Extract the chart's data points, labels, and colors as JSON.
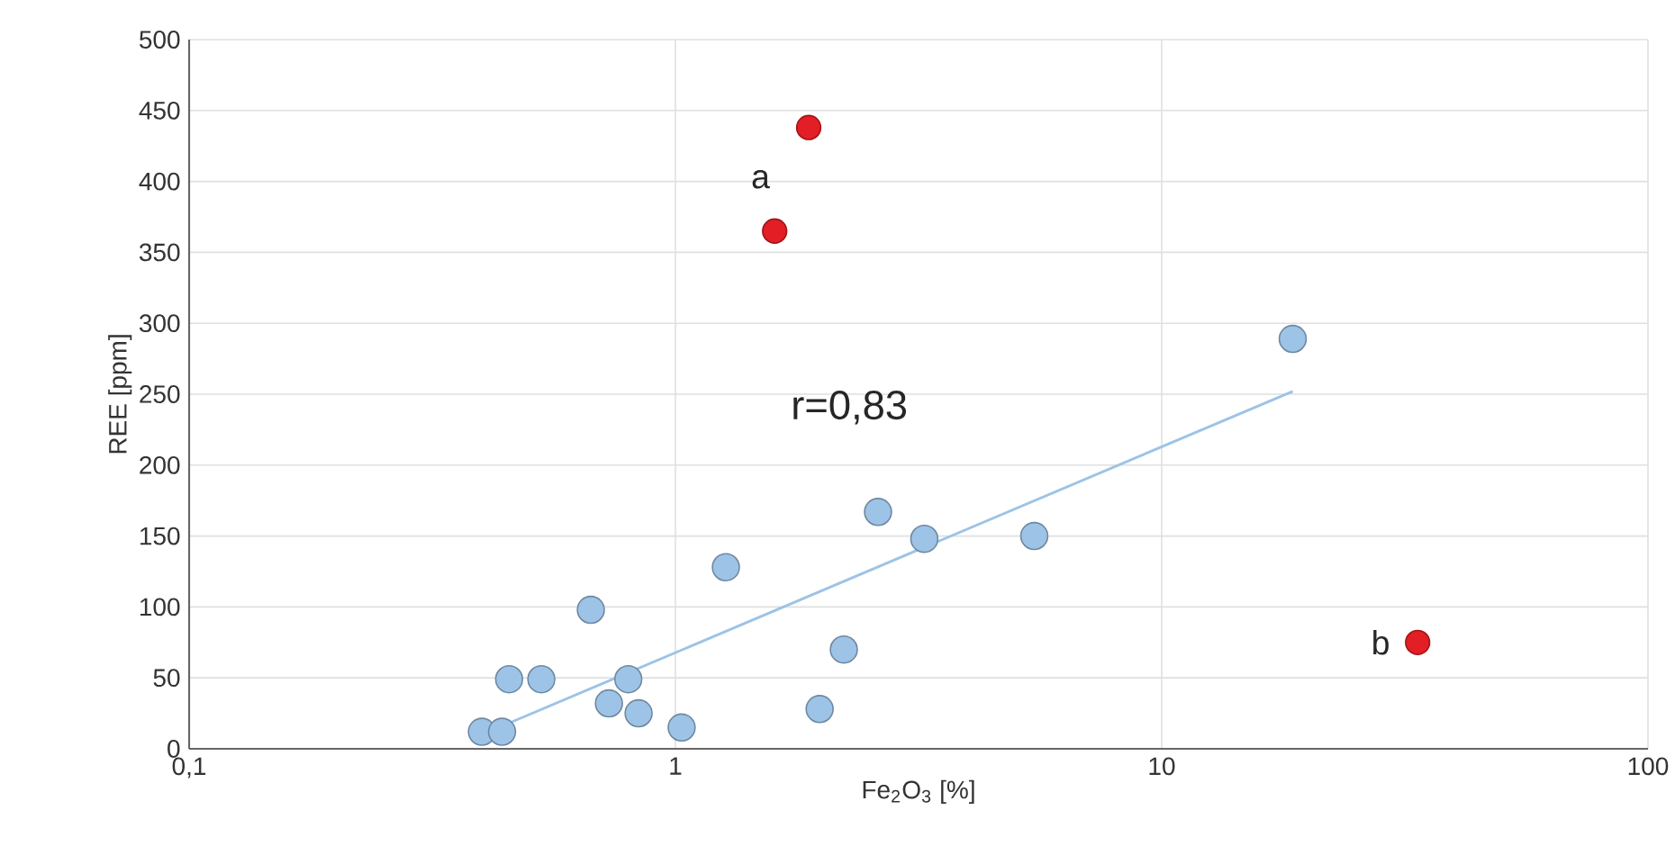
{
  "chart_data": {
    "type": "scatter",
    "xlabel": "Fe$_{2}$O$_{3}$ [%]",
    "ylabel": "REE [ppm]",
    "log": "x",
    "grid": true,
    "xlim": [
      0.1,
      100
    ],
    "ylim": [
      0,
      500
    ],
    "xticks": [
      {
        "value": 0.1,
        "label": "0,1"
      },
      1,
      10,
      100
    ],
    "yticks": [
      0,
      50,
      100,
      150,
      200,
      250,
      300,
      350,
      400,
      450,
      500
    ],
    "series": [
      {
        "marker": "circle",
        "color": "#9dc3e6",
        "x": [
          0.4,
          0.44,
          0.455,
          0.53,
          0.67,
          0.73,
          0.8,
          0.84,
          1.03,
          1.27,
          1.98,
          2.22,
          2.61,
          3.25,
          5.47,
          18.6
        ],
        "values": [
          12,
          12,
          49,
          49,
          98,
          32,
          49,
          25,
          15,
          128,
          28,
          70,
          167,
          148,
          150,
          289
        ]
      },
      {
        "marker": "circle",
        "color": "#e31e24",
        "x": [
          1.88,
          1.6,
          33.6
        ],
        "values": [
          438,
          365,
          75
        ]
      },
      {
        "type": "line",
        "marker": "none",
        "color": "#9dc3e6",
        "x": [
          0.44,
          18.6
        ],
        "values": [
          16,
          252
        ]
      }
    ],
    "annotations": [
      "a",
      "b",
      "r=0,83"
    ]
  }
}
